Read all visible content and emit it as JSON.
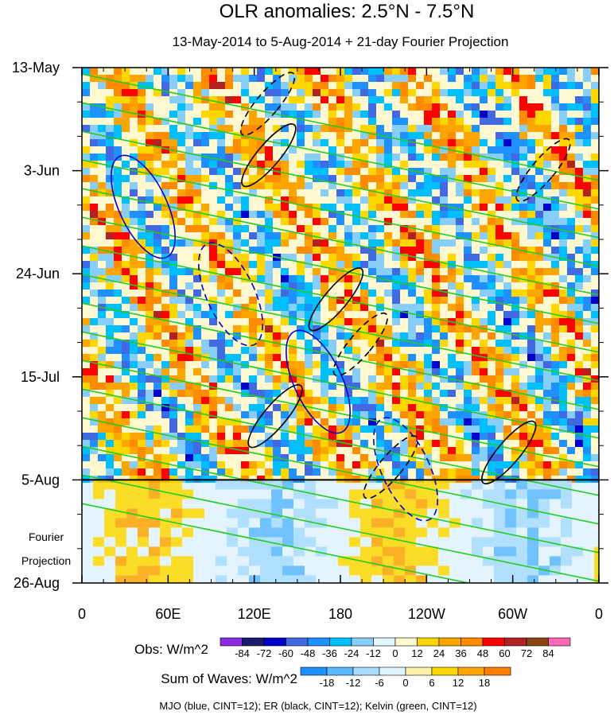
{
  "chart_data": {
    "type": "heatmap",
    "title": "OLR anomalies: 2.5°N - 7.5°N",
    "subtitle": "13-May-2014 to 5-Aug-2014 + 21-day Fourier Projection",
    "x_ticks": [
      "0",
      "60E",
      "120E",
      "180",
      "120W",
      "60W",
      "0"
    ],
    "x_tick_lon": [
      0,
      60,
      120,
      180,
      240,
      300,
      360
    ],
    "y_ticks": [
      "13-May",
      "3-Jun",
      "24-Jun",
      "15-Jul",
      "5-Aug",
      "26-Aug"
    ],
    "y_tick_day": [
      0,
      21,
      42,
      63,
      84,
      105
    ],
    "xlim": [
      0,
      360
    ],
    "ylim_days": [
      0,
      105
    ],
    "projection_start_day": 84,
    "projection_label": [
      "Fourier",
      "Projection"
    ],
    "grid": false,
    "obs_colorbar": {
      "label": "Obs: W/m^2",
      "ticks": [
        "-84",
        "-72",
        "-60",
        "-48",
        "-36",
        "-24",
        "-12",
        "0",
        "12",
        "24",
        "36",
        "48",
        "60",
        "72",
        "84"
      ],
      "colors": [
        "#8a2be2",
        "#191970",
        "#0000cd",
        "#4169e1",
        "#1e90ff",
        "#00bfff",
        "#87cefa",
        "#e0f7ff",
        "#fffacd",
        "#ffd700",
        "#ffa500",
        "#ff8c00",
        "#ff0000",
        "#b22222",
        "#8b4513",
        "#ff69b4"
      ]
    },
    "wave_colorbar": {
      "label": "Sum of Waves: W/m^2",
      "ticks": [
        "-18",
        "-12",
        "-6",
        "0",
        "6",
        "12",
        "18"
      ],
      "colors": [
        "#1e90ff",
        "#5cb8ff",
        "#a8dcff",
        "#e0f4ff",
        "#fff2a8",
        "#ffd700",
        "#ffa500",
        "#ff7f00"
      ]
    },
    "contour_note": "MJO (blue, CINT=12); ER (black, CINT=12); Kelvin (green, CINT=12)",
    "contour_colors": {
      "mjo": "#0000cd",
      "er": "#000000",
      "kelvin": "#22cc22"
    }
  }
}
